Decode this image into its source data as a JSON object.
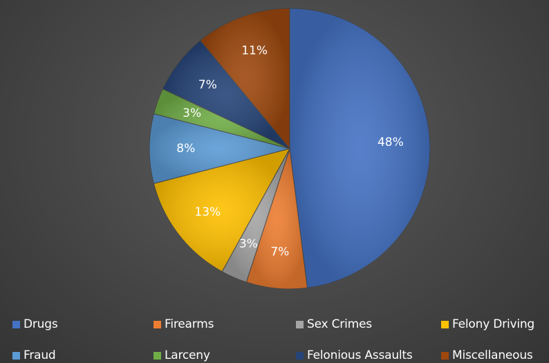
{
  "chart_data": {
    "type": "pie",
    "title": "",
    "legend_position": "bottom",
    "start_angle_deg": 0,
    "direction": "clockwise",
    "slices": [
      {
        "name": "Drugs",
        "value": 48,
        "label": "48%",
        "color": "#4472c4"
      },
      {
        "name": "Firearms",
        "value": 7,
        "label": "7%",
        "color": "#ed7d31"
      },
      {
        "name": "Sex Crimes",
        "value": 3,
        "label": "3%",
        "color": "#a5a5a5"
      },
      {
        "name": "Felony Driving",
        "value": 13,
        "label": "13%",
        "color": "#ffc000"
      },
      {
        "name": "Fraud",
        "value": 8,
        "label": "8%",
        "color": "#5b9bd5"
      },
      {
        "name": "Larceny",
        "value": 3,
        "label": "3%",
        "color": "#70ad47"
      },
      {
        "name": "Felonious Assaults",
        "value": 7,
        "label": "7%",
        "color": "#264478"
      },
      {
        "name": "Miscellaneous",
        "value": 11,
        "label": "11%",
        "color": "#9e480e"
      }
    ]
  }
}
